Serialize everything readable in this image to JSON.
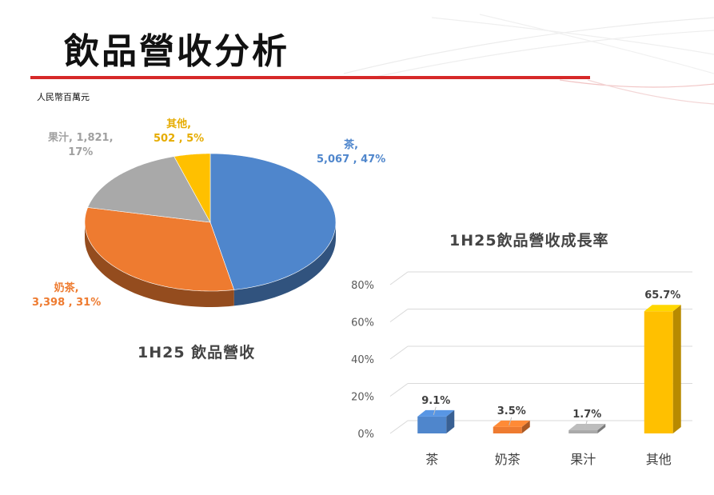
{
  "header": {
    "title": "飲品營收分析",
    "unit_note": "人民幣百萬元"
  },
  "colors": {
    "accent_rule": "#d62828",
    "tea": "#4f86cc",
    "milk_tea": "#ee7b30",
    "juice": "#a9a9a9",
    "other": "#ffc000"
  },
  "chart_data": [
    {
      "type": "pie",
      "title": "1H25 飲品營收",
      "slices": [
        {
          "name": "茶",
          "value": 5067,
          "value_label": "5,067",
          "percent_label": "47%"
        },
        {
          "name": "奶茶",
          "value": 3398,
          "value_label": "3,398",
          "percent_label": "31%"
        },
        {
          "name": "果汁",
          "value": 1821,
          "value_label": "1,821",
          "percent_label": "17%"
        },
        {
          "name": "其他",
          "value": 502,
          "value_label": "502",
          "percent_label": "5%"
        }
      ],
      "labels": {
        "tea_name": "茶,",
        "tea_value": "5,067 , 47%",
        "milk_name": "奶茶,",
        "milk_value": "3,398 , 31%",
        "juice_line1": "果汁, 1,821,",
        "juice_line2": "17%",
        "other_name": "其他,",
        "other_value": "502 , 5%"
      }
    },
    {
      "type": "bar",
      "title": "1H25飲品營收成長率",
      "categories": [
        "茶",
        "奶茶",
        "果汁",
        "其他"
      ],
      "values": [
        9.1,
        3.5,
        1.7,
        65.7
      ],
      "data_labels": [
        "9.1%",
        "3.5%",
        "1.7%",
        "65.7%"
      ],
      "yticks": [
        "0%",
        "20%",
        "40%",
        "60%",
        "80%"
      ],
      "ylim": [
        0,
        80
      ],
      "grid": true
    }
  ]
}
